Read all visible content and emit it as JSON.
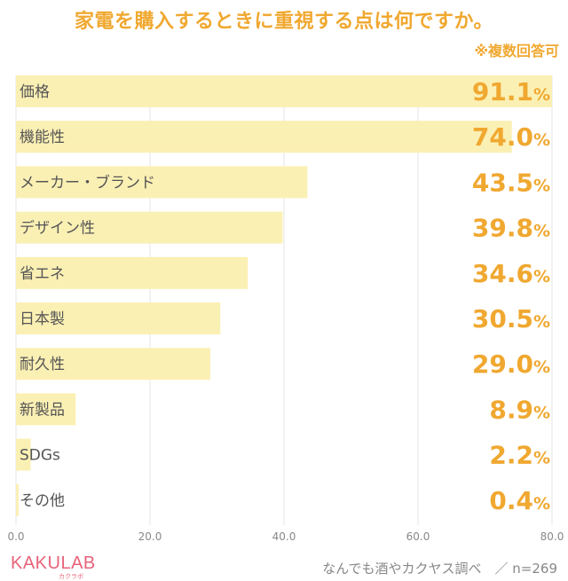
{
  "colors": {
    "accent": "#F0A830",
    "bar": "#FBF0B4",
    "grid": "#E6E6E6",
    "brand": "#E8627A"
  },
  "header": {
    "title": "家電を購入するときに重視する点は何ですか。",
    "note": "※複数回答可"
  },
  "footer": {
    "logo": "KAKULAB",
    "logo_sub": "カクラボ",
    "source": "なんでも酒やカクヤス調べ　／ n=269"
  },
  "chart_data": {
    "type": "bar",
    "orientation": "horizontal",
    "title": "家電を購入するときに重視する点は何ですか。",
    "subtitle": "※複数回答可",
    "categories": [
      "価格",
      "機能性",
      "メーカー・ブランド",
      "デザイン性",
      "省エネ",
      "日本製",
      "耐久性",
      "新製品",
      "SDGs",
      "その他"
    ],
    "values": [
      91.1,
      74.0,
      43.5,
      39.8,
      34.6,
      30.5,
      29.0,
      8.9,
      2.2,
      0.4
    ],
    "value_labels": [
      "91.1",
      "74.0",
      "43.5",
      "39.8",
      "34.6",
      "30.5",
      "29.0",
      "8.9",
      "2.2",
      "0.4"
    ],
    "value_suffix": "%",
    "xlim": [
      0,
      80
    ],
    "xticks": [
      0,
      20,
      40,
      60,
      80
    ],
    "xtick_labels": [
      "0.0",
      "20.0",
      "40.0",
      "60.0",
      "80.0"
    ],
    "grid": true
  }
}
